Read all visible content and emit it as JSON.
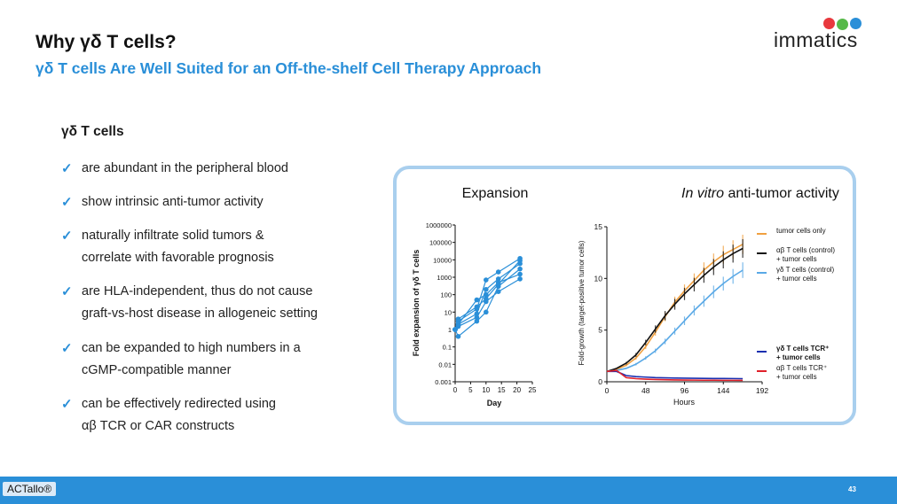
{
  "header": {
    "title": "Why γδ T cells?",
    "subtitle": "γδ T cells Are Well Suited for an Off-the-shelf Cell Therapy Approach",
    "logo_text": "immatics",
    "logo_colors": [
      "#e8383d",
      "#56b948",
      "#2a8fd8"
    ]
  },
  "section": {
    "heading": "γδ T cells",
    "check_icon": "check-icon",
    "bullets": [
      {
        "line1": "are abundant in the peripheral blood",
        "line2": ""
      },
      {
        "line1": "show intrinsic anti-tumor activity",
        "line2": ""
      },
      {
        "line1": "naturally infiltrate solid tumors &",
        "line2": "correlate with favorable prognosis"
      },
      {
        "line1": "are HLA-independent, thus do not cause",
        "line2": "graft-vs-host disease in allogeneic setting"
      },
      {
        "line1": "can be expanded to high numbers in a",
        "line2": "cGMP-compatible manner"
      },
      {
        "line1": "can be effectively redirected using",
        "line2": "αβ TCR or CAR constructs"
      }
    ]
  },
  "colors": {
    "accent": "#2a8fd8",
    "panel_border": "#a9cfee",
    "footer": "#2a8fd8"
  },
  "footer": {
    "tag": "ACTallo®",
    "page_number": "43"
  },
  "chart_data": [
    {
      "type": "line",
      "title": "Expansion",
      "xlabel": "Day",
      "ylabel": "Fold expansion of γδ T cells",
      "xlim": [
        0,
        25
      ],
      "ylim": [
        0.001,
        1000000
      ],
      "yscale": "log",
      "xticks": [
        "0",
        "5",
        "10",
        "15",
        "20",
        "25"
      ],
      "yticks": [
        "0.001",
        "0.01",
        "0.1",
        "1",
        "10",
        "100",
        "1000",
        "10000",
        "100000",
        "1000000"
      ],
      "color": "#2a8fd8",
      "series": [
        {
          "x": [
            0,
            1,
            7,
            10,
            14,
            21
          ],
          "values": [
            1,
            3,
            15,
            700,
            2000,
            12000
          ]
        },
        {
          "x": [
            0,
            1,
            7,
            10,
            14,
            21
          ],
          "values": [
            1,
            2,
            8,
            200,
            800,
            6000
          ]
        },
        {
          "x": [
            0,
            1,
            7,
            10,
            14,
            21
          ],
          "values": [
            1,
            0.4,
            3,
            10,
            300,
            3000
          ]
        },
        {
          "x": [
            0,
            1,
            7,
            10,
            14,
            21
          ],
          "values": [
            1,
            2,
            50,
            100,
            500,
            1500
          ]
        },
        {
          "x": [
            0,
            1,
            7,
            10,
            14,
            21
          ],
          "values": [
            1,
            1.5,
            5,
            40,
            150,
            800
          ]
        },
        {
          "x": [
            0,
            1,
            7,
            10,
            14,
            21
          ],
          "values": [
            1,
            4,
            20,
            60,
            400,
            9000
          ]
        }
      ]
    },
    {
      "type": "line",
      "title_italic": "In vitro",
      "title_rest": " anti-tumor activity",
      "xlabel": "Hours",
      "ylabel": "Fold-growth (target-positive tumor cells)",
      "xlim": [
        0,
        192
      ],
      "ylim": [
        0,
        15
      ],
      "xticks": [
        "0",
        "48",
        "96",
        "144",
        "192"
      ],
      "yticks": [
        "0",
        "5",
        "10",
        "15"
      ],
      "series": [
        {
          "name": "tumor cells only",
          "name2": "",
          "color": "#f0a040",
          "bold": false,
          "x": [
            0,
            12,
            24,
            36,
            48,
            60,
            72,
            84,
            96,
            108,
            120,
            132,
            144,
            156,
            168
          ],
          "values": [
            1,
            1.2,
            1.6,
            2.3,
            3.4,
            4.8,
            6.3,
            7.7,
            8.8,
            9.8,
            10.8,
            11.6,
            12.3,
            12.8,
            13.3
          ]
        },
        {
          "name": "αβ T cells (control)",
          "name2": "+ tumor cells",
          "color": "#111111",
          "bold": false,
          "x": [
            0,
            12,
            24,
            36,
            48,
            60,
            72,
            84,
            96,
            108,
            120,
            132,
            144,
            156,
            168
          ],
          "values": [
            1,
            1.3,
            1.8,
            2.6,
            3.8,
            5.1,
            6.4,
            7.5,
            8.5,
            9.4,
            10.3,
            11.1,
            11.8,
            12.4,
            12.9
          ]
        },
        {
          "name": "γδ T cells (control)",
          "name2": "+ tumor cells",
          "color": "#5aa9e6",
          "bold": false,
          "x": [
            0,
            12,
            24,
            36,
            48,
            60,
            72,
            84,
            96,
            108,
            120,
            132,
            144,
            156,
            168
          ],
          "values": [
            1,
            1.1,
            1.3,
            1.7,
            2.3,
            3.0,
            3.9,
            4.9,
            5.9,
            6.9,
            7.8,
            8.7,
            9.5,
            10.2,
            10.8
          ]
        },
        {
          "name": "γδ T cells TCR⁺",
          "name2": "+ tumor cells",
          "color": "#1a2fb0",
          "bold": true,
          "x": [
            0,
            12,
            24,
            36,
            48,
            60,
            72,
            84,
            96,
            108,
            120,
            132,
            144,
            156,
            168
          ],
          "values": [
            1,
            1.0,
            0.6,
            0.5,
            0.45,
            0.4,
            0.38,
            0.36,
            0.35,
            0.34,
            0.33,
            0.32,
            0.32,
            0.31,
            0.3
          ]
        },
        {
          "name": "αβ T cells TCR⁺",
          "name2": "+ tumor cells",
          "color": "#e0202a",
          "bold": false,
          "x": [
            0,
            12,
            24,
            36,
            48,
            60,
            72,
            84,
            96,
            108,
            120,
            132,
            144,
            156,
            168
          ],
          "values": [
            1,
            1.1,
            0.4,
            0.3,
            0.25,
            0.22,
            0.2,
            0.18,
            0.17,
            0.16,
            0.15,
            0.15,
            0.14,
            0.14,
            0.13
          ]
        }
      ]
    }
  ]
}
